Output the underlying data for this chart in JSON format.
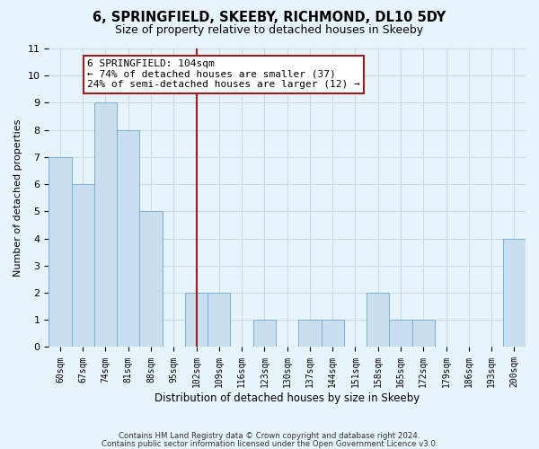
{
  "title": "6, SPRINGFIELD, SKEEBY, RICHMOND, DL10 5DY",
  "subtitle": "Size of property relative to detached houses in Skeeby",
  "xlabel": "Distribution of detached houses by size in Skeeby",
  "ylabel": "Number of detached properties",
  "tick_labels": [
    "60sqm",
    "67sqm",
    "74sqm",
    "81sqm",
    "88sqm",
    "95sqm",
    "102sqm",
    "109sqm",
    "116sqm",
    "123sqm",
    "130sqm",
    "137sqm",
    "144sqm",
    "151sqm",
    "158sqm",
    "165sqm",
    "172sqm",
    "179sqm",
    "186sqm",
    "193sqm",
    "200sqm"
  ],
  "bar_values": [
    7,
    6,
    9,
    8,
    5,
    0,
    2,
    2,
    0,
    1,
    0,
    1,
    1,
    0,
    2,
    1,
    1,
    0,
    0,
    0,
    4
  ],
  "bar_color": "#c9dff0",
  "bar_edge_color": "#7ab0d4",
  "subject_bin_index": 6,
  "subject_line_color": "#9b1c1c",
  "annotation_line1": "6 SPRINGFIELD: 104sqm",
  "annotation_line2": "← 74% of detached houses are smaller (37)",
  "annotation_line3": "24% of semi-detached houses are larger (12) →",
  "annotation_box_facecolor": "#ffffff",
  "annotation_box_edgecolor": "#9b1c1c",
  "ylim": [
    0,
    11
  ],
  "yticks": [
    0,
    1,
    2,
    3,
    4,
    5,
    6,
    7,
    8,
    9,
    10,
    11
  ],
  "footer_line1": "Contains HM Land Registry data © Crown copyright and database right 2024.",
  "footer_line2": "Contains public sector information licensed under the Open Government Licence v3.0.",
  "grid_color": "#c8dcea",
  "background_color": "#e8f4fb",
  "plot_bg_color": "#e8f4fb"
}
